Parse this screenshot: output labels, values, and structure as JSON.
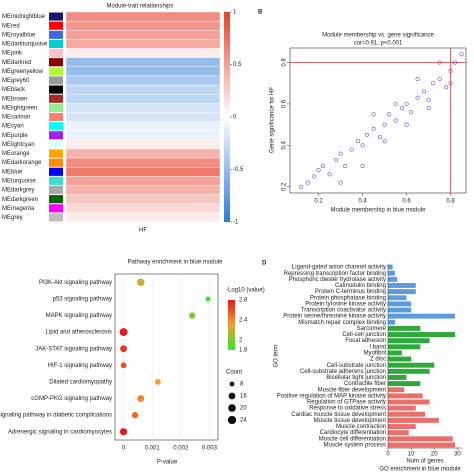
{
  "chart_data": [
    {
      "type": "heatmap",
      "title": "Module-trait relationships",
      "categories": [
        "MEmidnightblue",
        "MEred",
        "MEroyalblue",
        "MEdarkturquoise",
        "MEpink",
        "MEdarkred",
        "MEgreenyellow",
        "MEgrey60",
        "MEblack",
        "MEbrown",
        "MElightgreen",
        "MEsalmon",
        "MEcyan",
        "MEpurple",
        "MElightcyan",
        "MEorange",
        "MEdarkorange",
        "MEblue",
        "MEturquoise",
        "MEdarkgrey",
        "MEdarkgreen",
        "MEmagenta",
        "MEgrey"
      ],
      "swatch_colors": [
        "#191970",
        "#ff0000",
        "#4169e1",
        "#00ced1",
        "#ffc0cb",
        "#8b0000",
        "#adff2f",
        "#999999",
        "#000000",
        "#a52a2a",
        "#90ee90",
        "#fa8072",
        "#00ffff",
        "#a020f0",
        "#e0ffff",
        "#ffa500",
        "#ff8c00",
        "#0000ff",
        "#40e0d0",
        "#a9a9a9",
        "#006400",
        "#ff00ff",
        "#bebebe"
      ],
      "values": [
        0.6,
        0.55,
        0.5,
        0.45,
        0.1,
        -0.5,
        -0.5,
        -0.4,
        -0.3,
        -0.3,
        -0.2,
        -0.2,
        -0.1,
        -0.1,
        0.1,
        0.4,
        0.6,
        0.7,
        0.5,
        0.4,
        0.3,
        0.2,
        0.1
      ],
      "xcategories": [
        "HF"
      ],
      "zlim": [
        -1,
        1
      ],
      "zticks": [
        1,
        0.5,
        0,
        -0.5,
        -1
      ],
      "colormap": [
        "#2b7bd8",
        "#ffffff",
        "#e8402c"
      ]
    },
    {
      "type": "scatter",
      "panel": "B",
      "title": "Module membership vs. gene significance",
      "subtitle": "cor=0.91, p<0.001",
      "xlabel": "Module membership in blue module",
      "ylabel": "Gene significance for HF",
      "x": [
        0.12,
        0.15,
        0.18,
        0.2,
        0.22,
        0.25,
        0.28,
        0.3,
        0.32,
        0.35,
        0.38,
        0.4,
        0.42,
        0.45,
        0.48,
        0.5,
        0.52,
        0.55,
        0.58,
        0.6,
        0.62,
        0.65,
        0.68,
        0.7,
        0.72,
        0.75,
        0.78,
        0.8,
        0.82,
        0.85,
        0.3,
        0.4,
        0.5,
        0.6,
        0.7,
        0.8,
        0.45,
        0.55,
        0.65,
        0.75
      ],
      "values": [
        0.2,
        0.22,
        0.25,
        0.28,
        0.3,
        0.26,
        0.33,
        0.36,
        0.3,
        0.38,
        0.42,
        0.4,
        0.45,
        0.48,
        0.44,
        0.5,
        0.55,
        0.52,
        0.58,
        0.6,
        0.56,
        0.63,
        0.66,
        0.62,
        0.7,
        0.72,
        0.68,
        0.76,
        0.8,
        0.84,
        0.22,
        0.3,
        0.42,
        0.5,
        0.58,
        0.7,
        0.55,
        0.6,
        0.72,
        0.8
      ],
      "xlim": [
        0.07,
        0.87
      ],
      "ylim": [
        0.17,
        0.87
      ],
      "xticks": [
        0.2,
        0.4,
        0.6,
        0.8
      ],
      "yticks": [
        0.2,
        0.4,
        0.6,
        0.8
      ],
      "ref_x": 0.8,
      "ref_y": 0.8,
      "color": "#2a2ad0",
      "ref_color": "#d03030"
    },
    {
      "type": "bubble",
      "title": "Pathway enrichment in blue module",
      "xlabel": "P-value",
      "categories": [
        "PI3K-Akt signaling pathway",
        "p53 signaling pathway",
        "MAPK signaling pathway",
        "Lipid and atherosclerosis",
        "JAK-STAT signaling pathway",
        "HIF-1 signaling pathway",
        "Dilated cardiomyopathy",
        "cGMP-PKG signaling pathway",
        "signaling pathway in diabetic complications",
        "Adrenergic signaling in cardiomyocytes"
      ],
      "x": [
        0.0006,
        0.00295,
        0.0024,
        0.0,
        0.0,
        0.0,
        0.0012,
        0.0006,
        0.0004,
        0.0
      ],
      "values": [
        2.2,
        1.8,
        2.0,
        2.8,
        2.7,
        2.6,
        2.3,
        2.4,
        2.5,
        2.8
      ],
      "sizes": [
        20,
        8,
        14,
        22,
        16,
        12,
        12,
        16,
        14,
        18
      ],
      "xlim": [
        -0.0003,
        0.0033
      ],
      "xticks": [
        0,
        0.001,
        0.002,
        0.003
      ],
      "legend_title": "-Log10 (value)",
      "zlim": [
        1.8,
        2.8
      ],
      "zticks": [
        2.8,
        2.4,
        2.0,
        1.8
      ],
      "colormap": [
        "#2ee82e",
        "#f0a030",
        "#e41a1c"
      ],
      "size_title": "Count",
      "size_ticks": [
        8,
        16,
        20,
        24
      ]
    },
    {
      "type": "barh",
      "panel": "D",
      "title": "GO enrichment in blue module",
      "xlabel": "Num of genes",
      "ylabel": "GO term",
      "categories": [
        "Ligand-gated anion channel activity",
        "Repressing transcription factor binding",
        "Phosphoric diester hydrolase activity",
        "Calmodulin binding",
        "Protein C-terminus binding",
        "Protein phosphatase binding",
        "Protein tyrosine kinase activity",
        "Transcription coactivator activity",
        "Protein serine/threonine kinase activity",
        "Mismatch repair complex binding",
        "Sarcomere",
        "Cell-cell junction",
        "Focal adhesion",
        "I band",
        "Myofibril",
        "Z disc",
        "Cell-substrate junction",
        "Cell-substrate adherens junction",
        "Bicellular tight junction",
        "Contractile fiber",
        "Muscle fiber development",
        "Positive regulation of MAP kinase activity",
        "Regulation of GTPase activity",
        "Response to oxidative stress",
        "Cardiac muscle tissue development",
        "Muscle tissue development",
        "Muscle contraction",
        "Cardiocyte differentiation",
        "Muscle cell differentiation",
        "Muscle system process"
      ],
      "values": [
        2,
        3,
        4,
        12,
        12,
        8,
        10,
        10,
        29,
        3,
        14,
        29,
        18,
        14,
        6,
        10,
        20,
        18,
        8,
        14,
        7,
        15,
        18,
        12,
        16,
        22,
        12,
        9,
        28,
        29
      ],
      "bar_colors": [
        "#5b9be0",
        "#5b9be0",
        "#5b9be0",
        "#5b9be0",
        "#5b9be0",
        "#5b9be0",
        "#5b9be0",
        "#5b9be0",
        "#5b9be0",
        "#5b9be0",
        "#2eaa3a",
        "#2eaa3a",
        "#2eaa3a",
        "#2eaa3a",
        "#2eaa3a",
        "#2eaa3a",
        "#2eaa3a",
        "#2eaa3a",
        "#2eaa3a",
        "#2eaa3a",
        "#e8706a",
        "#e8706a",
        "#e8706a",
        "#e8706a",
        "#e8706a",
        "#e8706a",
        "#e8706a",
        "#e8706a",
        "#e8706a",
        "#e8706a"
      ],
      "xlim": [
        0,
        32
      ],
      "xticks": [
        0,
        10,
        20,
        30
      ]
    }
  ]
}
